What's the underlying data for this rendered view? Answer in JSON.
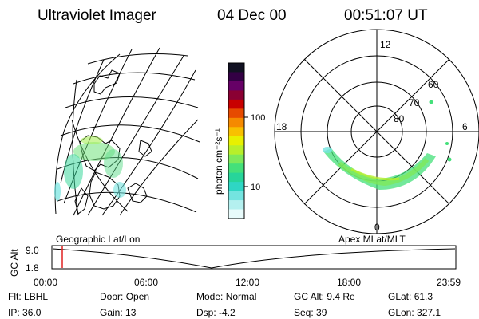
{
  "header": {
    "title": "Ultraviolet Imager",
    "date": "04 Dec 00",
    "time": "00:51:07 UT"
  },
  "colorbar": {
    "unit_label": "photon cm⁻²s⁻¹",
    "ticks": [
      "100",
      "10"
    ],
    "colors": [
      "#111122",
      "#330044",
      "#660066",
      "#8a0033",
      "#c80000",
      "#e64a00",
      "#f58a00",
      "#f8c000",
      "#e8f000",
      "#b8ef2a",
      "#7ee95a",
      "#44e07a",
      "#27d59a",
      "#2fd6c4",
      "#74e4e0",
      "#b4f0ef",
      "#e8fbfb"
    ]
  },
  "polar_plot": {
    "mlt_labels": [
      "12",
      "18",
      "6",
      "0"
    ],
    "lat_labels": [
      "60",
      "70",
      "80"
    ]
  },
  "timeline": {
    "left_label": "Geographic Lat/Lon",
    "right_label": "Apex MLat/MLT",
    "axis_title": "GC Alt",
    "y_ticks": [
      "9.0",
      "1.8"
    ],
    "x_ticks": [
      "00:00",
      "06:00",
      "12:00",
      "18:00",
      "23:59"
    ],
    "current_marker_color": "#e02020"
  },
  "footer": {
    "row1": [
      {
        "label": "Flt:",
        "value": "LBHL"
      },
      {
        "label": "Door:",
        "value": "Open"
      },
      {
        "label": "Mode:",
        "value": "Normal"
      },
      {
        "label": "GC Alt:",
        "value": "9.4 Re"
      },
      {
        "label": "GLat:",
        "value": "61.3"
      }
    ],
    "row2": [
      {
        "label": "IP:",
        "value": "36.0"
      },
      {
        "label": "Gain:",
        "value": "13"
      },
      {
        "label": "Dsp:",
        "value": "-4.2"
      },
      {
        "label": "Seq:",
        "value": "39"
      },
      {
        "label": "GLon:",
        "value": "327.1"
      }
    ]
  }
}
